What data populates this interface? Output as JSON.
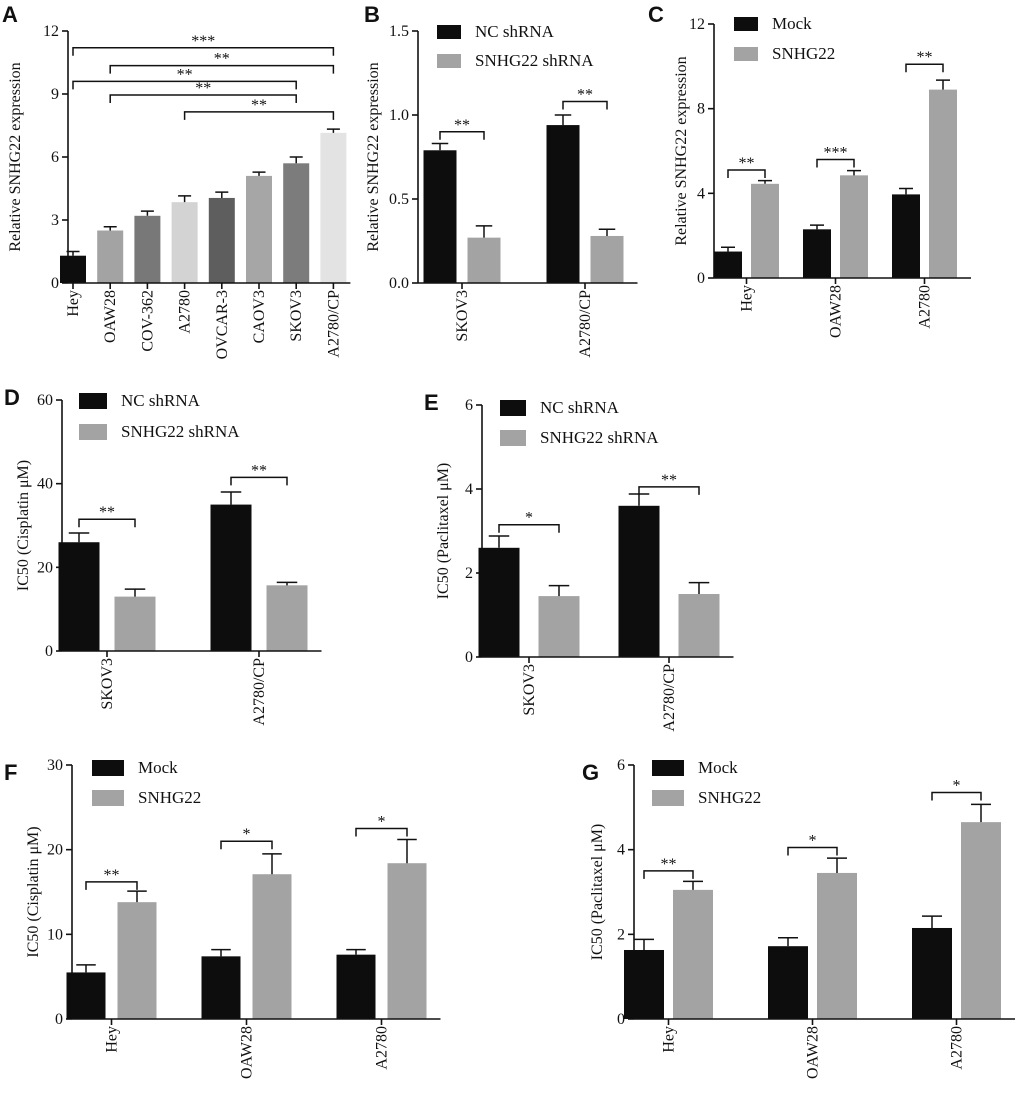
{
  "colors": {
    "mock": "#0d0d0d",
    "treat": "#a3a3a3",
    "axis": "#111111"
  },
  "chart_data": [
    {
      "panel": "A",
      "type": "bar",
      "ylabel": "Relative SNHG22 expression",
      "ylim": [
        0,
        12
      ],
      "yticks": [
        0,
        3,
        6,
        9,
        12
      ],
      "categories": [
        "Hey",
        "OAW28",
        "COV-362",
        "A2780",
        "OVCAR-3",
        "CAOV3",
        "SKOV3",
        "A2780/CP"
      ],
      "values": [
        1.3,
        2.5,
        3.2,
        3.85,
        4.05,
        5.1,
        5.7,
        7.15
      ],
      "errors": [
        0.2,
        0.18,
        0.22,
        0.3,
        0.28,
        0.18,
        0.3,
        0.18
      ],
      "bar_colors": [
        "#0d0d0d",
        "#a3a3a3",
        "#787878",
        "#d3d3d3",
        "#5e5e5e",
        "#a6a6a6",
        "#7c7c7c",
        "#e3e3e3"
      ],
      "brackets": [
        {
          "from": 0,
          "to": 7,
          "y": 11.2,
          "label": "***"
        },
        {
          "from": 1,
          "to": 7,
          "y": 10.35,
          "label": "**"
        },
        {
          "from": 0,
          "to": 6,
          "y": 9.6,
          "label": "**"
        },
        {
          "from": 1,
          "to": 6,
          "y": 8.95,
          "label": "**"
        },
        {
          "from": 3,
          "to": 7,
          "y": 8.15,
          "label": "**"
        }
      ]
    },
    {
      "panel": "B",
      "type": "bar",
      "ylabel": "Relative SNHG22 expression",
      "ylim": [
        0,
        1.5
      ],
      "yticks": [
        "0.0",
        "0.5",
        "1.0",
        "1.5"
      ],
      "categories": [
        "SKOV3",
        "A2780/CP"
      ],
      "series": [
        {
          "name": "NC shRNA",
          "values": [
            0.79,
            0.94
          ],
          "errors": [
            0.04,
            0.06
          ]
        },
        {
          "name": "SNHG22 shRNA",
          "values": [
            0.27,
            0.28
          ],
          "errors": [
            0.07,
            0.04
          ]
        }
      ],
      "brackets": [
        {
          "group": 0,
          "y": 0.9,
          "label": "**"
        },
        {
          "group": 1,
          "y": 1.08,
          "label": "**"
        }
      ]
    },
    {
      "panel": "C",
      "type": "bar",
      "ylabel": "Relative SNHG22 expression",
      "ylim": [
        0,
        12
      ],
      "yticks": [
        0,
        4,
        8,
        12
      ],
      "categories": [
        "Hey",
        "OAW28",
        "A2780"
      ],
      "series": [
        {
          "name": "Mock",
          "values": [
            1.25,
            2.3,
            3.95
          ],
          "errors": [
            0.2,
            0.2,
            0.28
          ]
        },
        {
          "name": "SNHG22",
          "values": [
            4.45,
            4.85,
            8.9
          ],
          "errors": [
            0.15,
            0.22,
            0.45
          ]
        }
      ],
      "brackets": [
        {
          "group": 0,
          "y": 5.1,
          "label": "**"
        },
        {
          "group": 1,
          "y": 5.6,
          "label": "***"
        },
        {
          "group": 2,
          "y": 10.1,
          "label": "**"
        }
      ]
    },
    {
      "panel": "D",
      "type": "bar",
      "ylabel": "IC50 (Cisplatin μM)",
      "ylim": [
        0,
        60
      ],
      "yticks": [
        0,
        20,
        40,
        60
      ],
      "categories": [
        "SKOV3",
        "A2780/CP"
      ],
      "series": [
        {
          "name": "NC shRNA",
          "values": [
            26,
            35
          ],
          "errors": [
            2.2,
            3
          ]
        },
        {
          "name": "SNHG22 shRNA",
          "values": [
            13,
            15.7
          ],
          "errors": [
            1.8,
            0.7
          ]
        }
      ],
      "brackets": [
        {
          "group": 0,
          "y": 31.5,
          "label": "**"
        },
        {
          "group": 1,
          "y": 41.5,
          "label": "**"
        }
      ]
    },
    {
      "panel": "E",
      "type": "bar",
      "ylabel": "IC50 (Paclitaxel μM)",
      "ylim": [
        0,
        6
      ],
      "yticks": [
        0,
        2,
        4,
        6
      ],
      "categories": [
        "SKOV3",
        "A2780/CP"
      ],
      "series": [
        {
          "name": "NC shRNA",
          "values": [
            2.6,
            3.6
          ],
          "errors": [
            0.28,
            0.28
          ]
        },
        {
          "name": "SNHG22 shRNA",
          "values": [
            1.45,
            1.5
          ],
          "errors": [
            0.25,
            0.27
          ]
        }
      ],
      "brackets": [
        {
          "group": 0,
          "y": 3.15,
          "label": "*"
        },
        {
          "group": 1,
          "y": 4.05,
          "label": "**"
        }
      ]
    },
    {
      "panel": "F",
      "type": "bar",
      "ylabel": "IC50 (Cisplatin μM)",
      "ylim": [
        0,
        30
      ],
      "yticks": [
        0,
        10,
        20,
        30
      ],
      "categories": [
        "Hey",
        "OAW28",
        "A2780"
      ],
      "series": [
        {
          "name": "Mock",
          "values": [
            5.5,
            7.4,
            7.6
          ],
          "errors": [
            0.9,
            0.8,
            0.6
          ]
        },
        {
          "name": "SNHG22",
          "values": [
            13.8,
            17.1,
            18.4
          ],
          "errors": [
            1.3,
            2.4,
            2.8
          ]
        }
      ],
      "brackets": [
        {
          "group": 0,
          "y": 16.2,
          "label": "**"
        },
        {
          "group": 1,
          "y": 21,
          "label": "*"
        },
        {
          "group": 2,
          "y": 22.5,
          "label": "*"
        }
      ]
    },
    {
      "panel": "G",
      "type": "bar",
      "ylabel": "IC50 (Paclitaxel μM)",
      "ylim": [
        0,
        6
      ],
      "yticks": [
        0,
        2,
        4,
        6
      ],
      "categories": [
        "Hey",
        "OAW28",
        "A2780"
      ],
      "series": [
        {
          "name": "Mock",
          "values": [
            1.63,
            1.72,
            2.15
          ],
          "errors": [
            0.25,
            0.2,
            0.28
          ]
        },
        {
          "name": "SNHG22",
          "values": [
            3.05,
            3.45,
            4.65
          ],
          "errors": [
            0.2,
            0.35,
            0.42
          ]
        }
      ],
      "brackets": [
        {
          "group": 0,
          "y": 3.5,
          "label": "**"
        },
        {
          "group": 1,
          "y": 4.05,
          "label": "*"
        },
        {
          "group": 2,
          "y": 5.35,
          "label": "*"
        }
      ]
    }
  ]
}
